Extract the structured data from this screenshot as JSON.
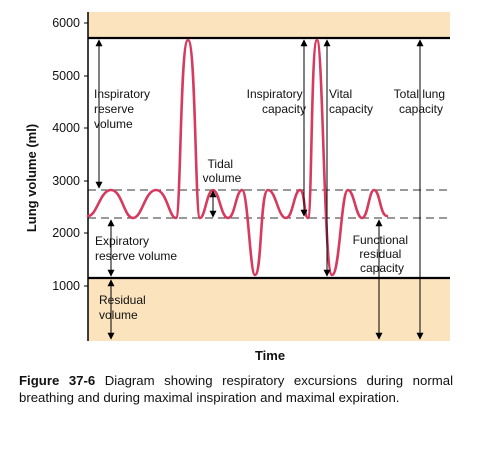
{
  "chart_data": {
    "type": "diagram",
    "xlabel": "Time",
    "ylabel": "Lung volume (ml)",
    "y_ticks": [
      "6000",
      "5000",
      "4000",
      "3000",
      "2000",
      "1000"
    ],
    "ylim": [
      0,
      6000
    ],
    "levels": {
      "total_lung_capacity": 5800,
      "tidal_max": 2800,
      "tidal_min": 2300,
      "residual_volume": 1200
    },
    "labels": {
      "inspiratory_reserve_volume": [
        "Inspiratory",
        "reserve",
        "volume"
      ],
      "tidal_volume": [
        "Tidal",
        "volume"
      ],
      "expiratory_reserve_volume": [
        "Expiratory",
        "reserve volume"
      ],
      "residual_volume": [
        "Residual",
        "volume"
      ],
      "inspiratory_capacity": [
        "Inspiratory",
        "capacity"
      ],
      "vital_capacity": [
        "Vital",
        "capacity"
      ],
      "total_lung_capacity": [
        "Total lung",
        "capacity"
      ],
      "functional_residual_capacity": [
        "Functional",
        "residual",
        "capacity"
      ]
    },
    "colors": {
      "trace": "#d63b5f",
      "shading": "#fbe4bd",
      "lines": "#000000"
    }
  },
  "caption": {
    "label": "Figure 37-6",
    "text": " Diagram showing respiratory excursions during normal breathing and during maximal inspiration and maximal expiration."
  }
}
